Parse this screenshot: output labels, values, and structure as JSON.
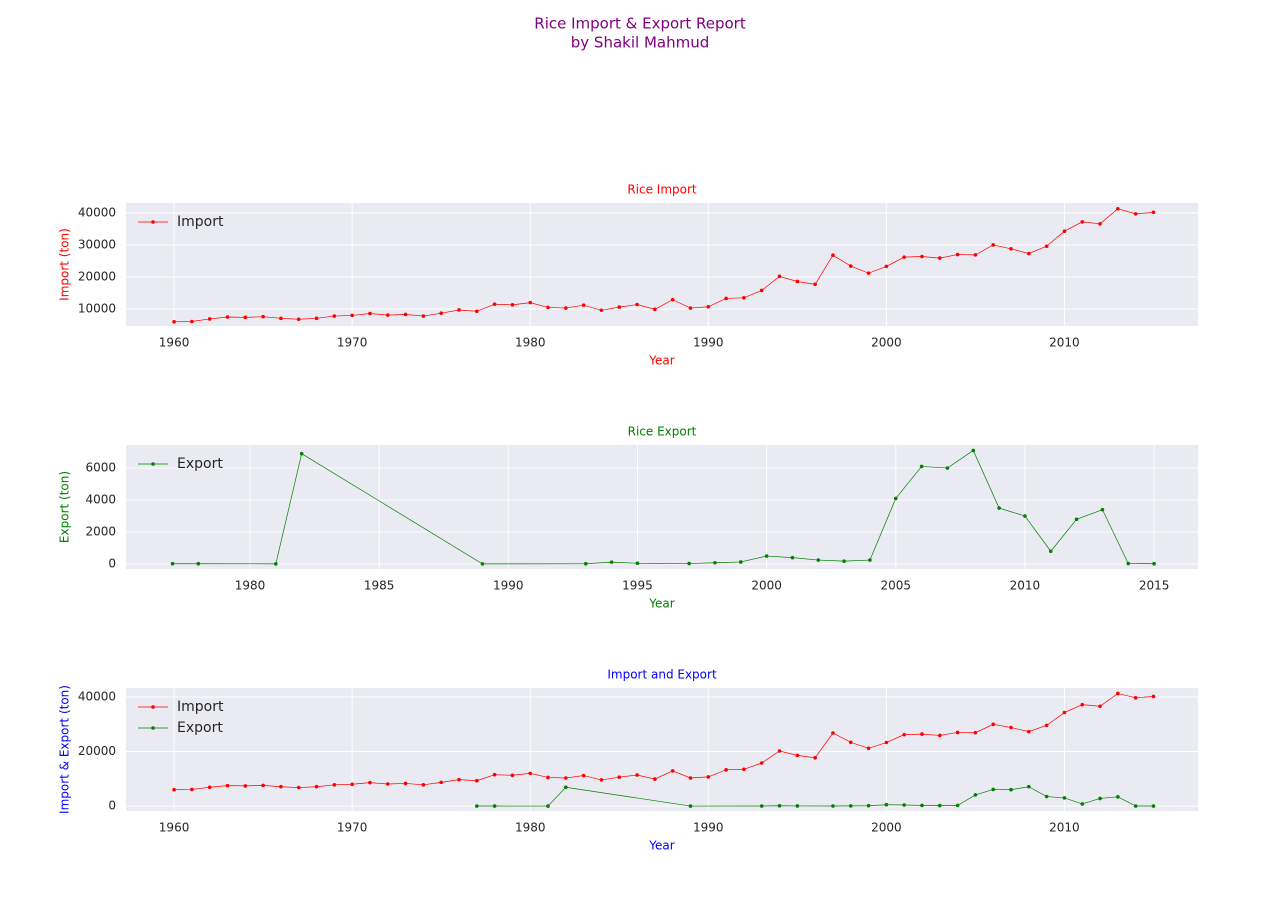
{
  "title": "Rice Import & Export Report",
  "subtitle": "by Shakil Mahmud",
  "title_color": "purple",
  "chart_data": [
    {
      "type": "line",
      "title": "Rice Import",
      "x_label": "Year",
      "y_label": "Import (ton)",
      "label_color": "red",
      "xlim": [
        1957.3,
        2017.5
      ],
      "ylim": [
        4700,
        43100
      ],
      "xticks": [
        1960,
        1970,
        1980,
        1990,
        2000,
        2010
      ],
      "yticks": [
        10000,
        20000,
        30000,
        40000
      ],
      "grid": true,
      "legend": "upper left",
      "series": [
        {
          "name": "Import",
          "color": "red",
          "x": [
            1960,
            1961,
            1962,
            1963,
            1964,
            1965,
            1966,
            1967,
            1968,
            1969,
            1970,
            1971,
            1972,
            1973,
            1974,
            1975,
            1976,
            1977,
            1978,
            1979,
            1980,
            1981,
            1982,
            1983,
            1984,
            1985,
            1986,
            1987,
            1988,
            1989,
            1990,
            1991,
            1992,
            1993,
            1994,
            1995,
            1996,
            1997,
            1998,
            1999,
            2000,
            2001,
            2002,
            2003,
            2004,
            2005,
            2006,
            2007,
            2008,
            2009,
            2010,
            2011,
            2012,
            2013,
            2014,
            2015
          ],
          "values": [
            6000,
            6100,
            6900,
            7500,
            7400,
            7600,
            7100,
            6800,
            7100,
            7800,
            8000,
            8600,
            8100,
            8300,
            7800,
            8700,
            9700,
            9300,
            11500,
            11300,
            12000,
            10500,
            10300,
            11200,
            9600,
            10600,
            11400,
            9900,
            12900,
            10300,
            10700,
            13300,
            13500,
            15800,
            20200,
            18600,
            17700,
            26800,
            23400,
            21200,
            23300,
            26200,
            26400,
            25900,
            27000,
            26900,
            30000,
            28800,
            27300,
            29600,
            34300,
            37200,
            36600,
            41300,
            39700,
            40200
          ]
        }
      ]
    },
    {
      "type": "line",
      "title": "Rice Export",
      "x_label": "Year",
      "y_label": "Export (ton)",
      "label_color": "green",
      "xlim": [
        1975.2,
        2016.7
      ],
      "ylim": [
        -310,
        7440
      ],
      "xticks": [
        1980,
        1985,
        1990,
        1995,
        2000,
        2005,
        2010,
        2015
      ],
      "yticks": [
        0,
        2000,
        4000,
        6000
      ],
      "grid": true,
      "legend": "upper left",
      "series": [
        {
          "name": "Export",
          "color": "green",
          "x": [
            1977,
            1978,
            1981,
            1982,
            1989,
            1993,
            1994,
            1995,
            1997,
            1998,
            1999,
            2000,
            2001,
            2002,
            2003,
            2004,
            2005,
            2006,
            2007,
            2008,
            2009,
            2010,
            2011,
            2012,
            2013,
            2014,
            2015
          ],
          "values": [
            20,
            20,
            10,
            6900,
            10,
            20,
            120,
            50,
            30,
            80,
            130,
            500,
            400,
            250,
            180,
            250,
            4100,
            6100,
            6000,
            7100,
            3500,
            3000,
            800,
            2800,
            3400,
            30,
            20
          ]
        }
      ]
    },
    {
      "type": "line",
      "title": "Import and Export",
      "x_label": "Year",
      "y_label": "Import & Export (ton)",
      "label_color": "blue",
      "xlim": [
        1957.3,
        2017.5
      ],
      "ylim": [
        -1800,
        43300
      ],
      "xticks": [
        1960,
        1970,
        1980,
        1990,
        2000,
        2010
      ],
      "yticks": [
        0,
        20000,
        40000
      ],
      "grid": true,
      "legend": "upper left",
      "series": [
        {
          "name": "Import",
          "color": "red",
          "x": [
            1960,
            1961,
            1962,
            1963,
            1964,
            1965,
            1966,
            1967,
            1968,
            1969,
            1970,
            1971,
            1972,
            1973,
            1974,
            1975,
            1976,
            1977,
            1978,
            1979,
            1980,
            1981,
            1982,
            1983,
            1984,
            1985,
            1986,
            1987,
            1988,
            1989,
            1990,
            1991,
            1992,
            1993,
            1994,
            1995,
            1996,
            1997,
            1998,
            1999,
            2000,
            2001,
            2002,
            2003,
            2004,
            2005,
            2006,
            2007,
            2008,
            2009,
            2010,
            2011,
            2012,
            2013,
            2014,
            2015
          ],
          "values": [
            6000,
            6100,
            6900,
            7500,
            7400,
            7600,
            7100,
            6800,
            7100,
            7800,
            8000,
            8600,
            8100,
            8300,
            7800,
            8700,
            9700,
            9300,
            11500,
            11300,
            12000,
            10500,
            10300,
            11200,
            9600,
            10600,
            11400,
            9900,
            12900,
            10300,
            10700,
            13300,
            13500,
            15800,
            20200,
            18600,
            17700,
            26800,
            23400,
            21200,
            23300,
            26200,
            26400,
            25900,
            27000,
            26900,
            30000,
            28800,
            27300,
            29600,
            34300,
            37200,
            36600,
            41300,
            39700,
            40200
          ]
        },
        {
          "name": "Export",
          "color": "green",
          "x": [
            1977,
            1978,
            1981,
            1982,
            1989,
            1993,
            1994,
            1995,
            1997,
            1998,
            1999,
            2000,
            2001,
            2002,
            2003,
            2004,
            2005,
            2006,
            2007,
            2008,
            2009,
            2010,
            2011,
            2012,
            2013,
            2014,
            2015
          ],
          "values": [
            20,
            20,
            10,
            6900,
            10,
            20,
            120,
            50,
            30,
            80,
            130,
            500,
            400,
            250,
            180,
            250,
            4100,
            6100,
            6000,
            7100,
            3500,
            3000,
            800,
            2800,
            3400,
            30,
            20
          ]
        }
      ]
    }
  ]
}
